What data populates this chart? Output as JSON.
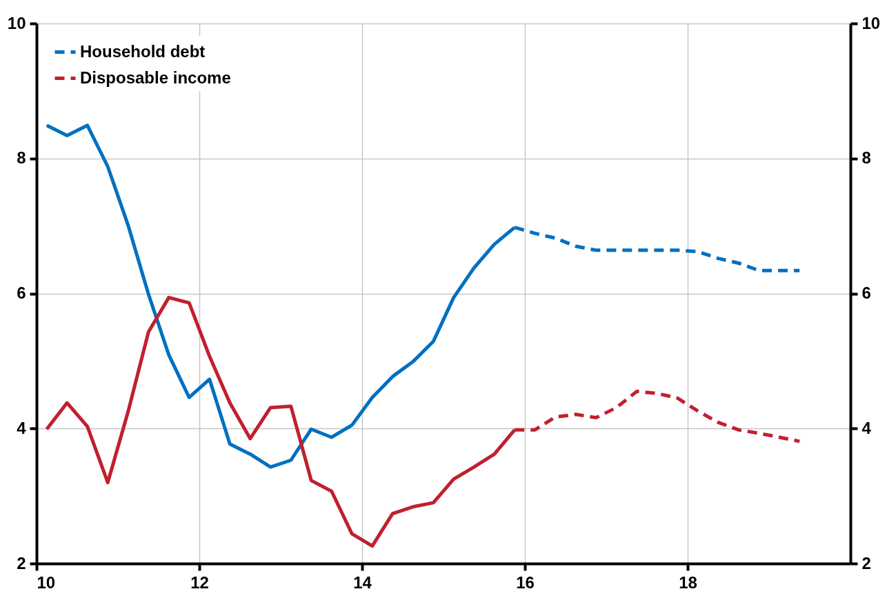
{
  "chart_data": {
    "type": "line",
    "x": [
      10.125,
      10.375,
      10.625,
      10.875,
      11.125,
      11.375,
      11.625,
      11.875,
      12.125,
      12.375,
      12.625,
      12.875,
      13.125,
      13.375,
      13.625,
      13.875,
      14.125,
      14.375,
      14.625,
      14.875,
      15.125,
      15.375,
      15.625,
      15.875,
      16.125,
      16.375,
      16.625,
      16.875,
      17.125,
      17.375,
      17.625,
      17.875,
      18.125,
      18.375,
      18.625,
      18.875,
      19.125,
      19.375
    ],
    "series": [
      {
        "color": "#0070c0",
        "line_style": "solid",
        "values": [
          8.49,
          8.34,
          8.49,
          7.88,
          7.01,
          5.99,
          5.09,
          4.46,
          4.73,
          3.77,
          3.62,
          3.43,
          3.53,
          3.99,
          3.87,
          4.05,
          4.46,
          4.77,
          4.99,
          5.29,
          5.94,
          6.38,
          6.73,
          6.98,
          null,
          null,
          null,
          null,
          null,
          null,
          null,
          null,
          null,
          null,
          null,
          null,
          null,
          null
        ]
      },
      {
        "name": "Household debt",
        "color": "#0070c0",
        "line_style": "dashed",
        "values": [
          null,
          null,
          null,
          null,
          null,
          null,
          null,
          null,
          null,
          null,
          null,
          null,
          null,
          null,
          null,
          null,
          null,
          null,
          null,
          null,
          null,
          null,
          null,
          6.98,
          6.89,
          6.82,
          6.7,
          6.64,
          6.64,
          6.64,
          6.64,
          6.64,
          6.62,
          6.52,
          6.45,
          6.34,
          6.34,
          6.34
        ]
      },
      {
        "color": "#c0202e",
        "line_style": "solid",
        "values": [
          3.99,
          4.38,
          4.03,
          3.2,
          4.25,
          5.43,
          5.94,
          5.86,
          5.07,
          4.38,
          3.85,
          4.31,
          4.33,
          3.23,
          3.07,
          2.44,
          2.26,
          2.74,
          2.84,
          2.9,
          3.25,
          3.43,
          3.62,
          3.98,
          null,
          null,
          null,
          null,
          null,
          null,
          null,
          null,
          null,
          null,
          null,
          null,
          null,
          null
        ]
      },
      {
        "name": "Disposable income",
        "color": "#c0202e",
        "line_style": "dashed",
        "values": [
          null,
          null,
          null,
          null,
          null,
          null,
          null,
          null,
          null,
          null,
          null,
          null,
          null,
          null,
          null,
          null,
          null,
          null,
          null,
          null,
          null,
          null,
          null,
          3.98,
          3.98,
          4.17,
          4.21,
          4.16,
          4.31,
          4.55,
          4.52,
          4.45,
          4.26,
          4.09,
          3.98,
          3.93,
          3.87,
          3.81
        ]
      }
    ],
    "xlim": [
      10,
      20
    ],
    "xticks": [
      10,
      12,
      14,
      16,
      18
    ],
    "ylim": [
      2,
      10
    ],
    "yticks": [
      2,
      4,
      6,
      8,
      10
    ],
    "y2lim": [
      2,
      10
    ],
    "y2ticks": [
      2,
      4,
      6,
      8,
      10
    ],
    "grid": true,
    "legend": "top left"
  }
}
